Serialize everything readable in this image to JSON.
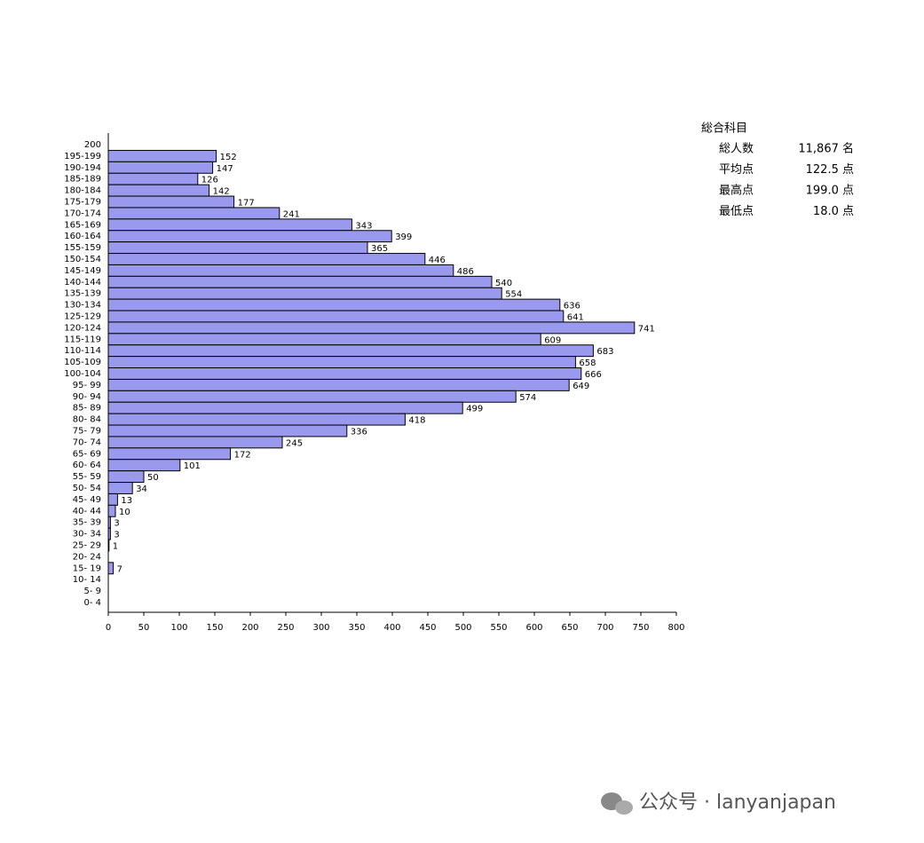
{
  "chart_data": {
    "type": "hbar",
    "categories": [
      "200",
      "195-199",
      "190-194",
      "185-189",
      "180-184",
      "175-179",
      "170-174",
      "165-169",
      "160-164",
      "155-159",
      "150-154",
      "145-149",
      "140-144",
      "135-139",
      "130-134",
      "125-129",
      "120-124",
      "115-119",
      "110-114",
      "105-109",
      "100-104",
      "95- 99",
      "90- 94",
      "85- 89",
      "80- 84",
      "75- 79",
      "70- 74",
      "65- 69",
      "60- 64",
      "55- 59",
      "50- 54",
      "45- 49",
      "40- 44",
      "35- 39",
      "30- 34",
      "25- 29",
      "20- 24",
      "15- 19",
      "10- 14",
      "5- 9",
      "0- 4"
    ],
    "values": [
      null,
      152,
      147,
      126,
      142,
      177,
      241,
      343,
      399,
      365,
      446,
      486,
      540,
      554,
      636,
      641,
      741,
      609,
      683,
      658,
      666,
      649,
      574,
      499,
      418,
      336,
      245,
      172,
      101,
      50,
      34,
      13,
      10,
      3,
      3,
      1,
      null,
      7,
      null,
      null,
      null
    ],
    "color": "#9999ee",
    "xlim": [
      0,
      800
    ],
    "xticks": [
      0,
      50,
      100,
      150,
      200,
      250,
      300,
      350,
      400,
      450,
      500,
      550,
      600,
      650,
      700,
      750,
      800
    ],
    "grid": false
  },
  "summary": {
    "title": "総合科目",
    "rows": [
      [
        "総人数",
        "11,867 名"
      ],
      [
        "平均点",
        "122.5 点"
      ],
      [
        "最高点",
        "199.0 点"
      ],
      [
        "最低点",
        "18.0 点"
      ]
    ]
  },
  "watermark": "公众号 · lanyanjapan"
}
